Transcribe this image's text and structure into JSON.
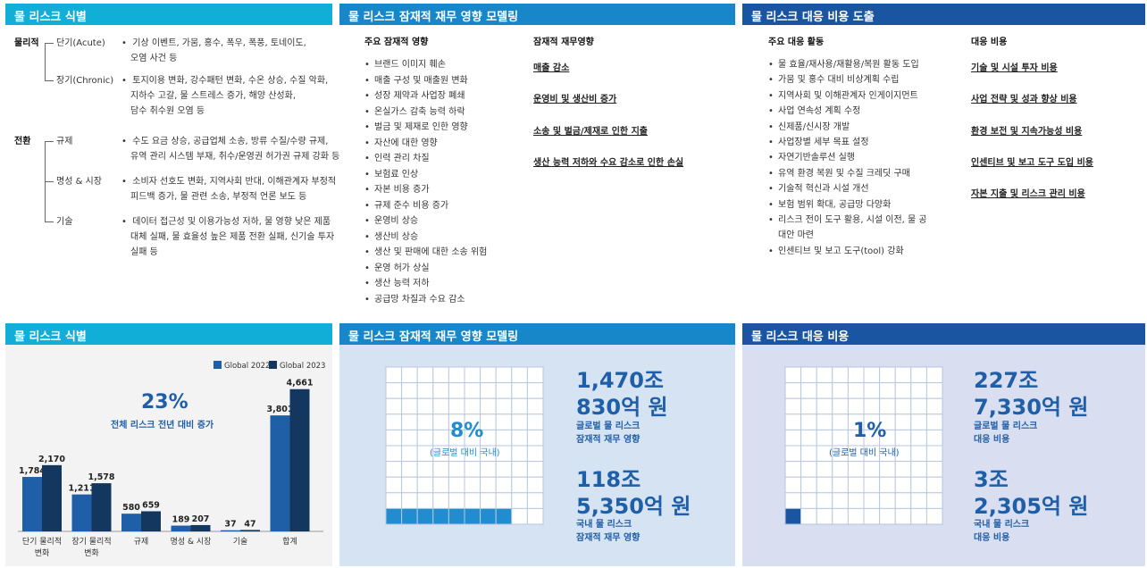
{
  "top": {
    "p1": {
      "header": "물 리스크 식별",
      "cat_physical": "물리적",
      "cat_transition": "전환",
      "items": [
        {
          "label": "단기(Acute)",
          "lines": [
            "기상 이벤트, 가뭄, 홍수, 폭우, 폭풍, 토네이도,",
            "오염 사건 등"
          ]
        },
        {
          "label": "장기(Chronic)",
          "lines": [
            "토지이용 변화, 강수패턴 변화, 수온 상승, 수질 악화,",
            "지하수 고갈, 물 스트레스 증가, 해양 산성화,",
            "담수 취수원 오염 등"
          ]
        },
        {
          "label": "규제",
          "lines": [
            "수도 요금 상승, 공급업체 소송, 방류 수질/수량 규제,",
            "유역 관리 시스템 부재, 취수/운영권 허가권 규제 강화 등"
          ]
        },
        {
          "label": "명성 & 시장",
          "lines": [
            "소비자 선호도 변화, 지역사회 반대, 이해관계자 부정적",
            "피드백 증가, 물 관련 소송, 부정적 언론 보도 등"
          ]
        },
        {
          "label": "기술",
          "lines": [
            "데이터 접근성 및 이용가능성 저하, 물 영향 낮은 제품",
            "대체 실패, 물 효율성 높은 제품 전환 실패, 신기술 투자",
            "실패 등"
          ]
        }
      ]
    },
    "p2": {
      "header": "물 리스크 잠재적 재무 영향  모델링",
      "col1_title": "주요 잠재적 영향",
      "col2_title": "잠재적 재무영향",
      "impacts": [
        "브랜드 이미지 훼손",
        "매출 구성 및 매출원 변화",
        "성장 제약과 사업장 폐쇄",
        "온실가스 감축 능력 하락",
        "벌금 및 제재로 인한 영향",
        "자산에 대한 영향",
        "인력 관리 차질",
        "보험료 인상",
        "자본 비용 증가",
        "규제 준수 비용 증가",
        "운영비 상승",
        "생산비 상승",
        "생산 및 판매에 대한 소송 위험",
        "운영 허가 상실",
        "생산 능력 저하",
        "공급망 차질과 수요 감소"
      ],
      "financial": [
        "매출 감소",
        "운영비 및 생산비 증가",
        "소송 및 벌금/제재로 인한 지출",
        "생산 능력 저하와 수요 감소로 인한 손실"
      ]
    },
    "p3": {
      "header": "물 리스크 대응 비용 도출",
      "col1_title": "주요 대응 활동",
      "col2_title": "대응 비용",
      "activities": [
        "물 효율/재사용/재활용/복원 활동 도입",
        "가뭄 및 홍수 대비 비상계획 수립",
        "지역사회 및 이해관계자 인게이지먼트",
        "사업 연속성 계획 수정",
        "신제품/신시장 개발",
        "사업장별 세부 목표 설정",
        "자연기반솔루션 실행",
        "유역 환경 복원 및 수질 크레딧 구매",
        "기술적 혁신과 시설 개선",
        "보험 범위 확대, 공급망 다양화",
        "리스크 전이 도구 활용, 시설 이전, 물 공",
        "대안 마련",
        "인센티브 및 보고 도구(tool) 강화"
      ],
      "costs": [
        "기술 및 시설 투자 비용",
        "사업 전략 및 성과 향상 비용",
        "환경 보전 및 지속가능성 비용",
        "인센티브 및 보고 도구 도입 비용",
        "자본 지출 및 리스크 관리 비용"
      ]
    }
  },
  "bottom": {
    "b1": {
      "header": "물 리스크 식별",
      "pct": "23%",
      "pct_caption": "전체 리스크 전년 대비 증가"
    },
    "b2": {
      "header": "물 리스크 잠재적 재무 영향 모델링",
      "grid_pct": "8%",
      "grid_caption": "(글로벌 대비 국내)",
      "global_l1": "1,470조",
      "global_l2": "830억 원",
      "global_caption": [
        "글로벌 물 리스크",
        "잠재적 재무 영향"
      ],
      "domestic_l1": "118조",
      "domestic_l2": "5,350억 원",
      "domestic_caption": [
        "국내 물 리스크",
        "잠재적 재무 영향"
      ]
    },
    "b3": {
      "header": "물 리스크 대응 비용",
      "grid_pct": "1%",
      "grid_caption": "(글로벌 대비 국내)",
      "global_l1": "227조",
      "global_l2": "7,330억 원",
      "global_caption": [
        "글로벌 물 리스크",
        "대응 비용"
      ],
      "domestic_l1": "3조",
      "domestic_l2": "2,305억 원",
      "domestic_caption": [
        "국내 물 리스크",
        "대응 비용"
      ]
    }
  },
  "chart_data": [
    {
      "type": "bar",
      "categories": [
        "단기 물리적\n변화",
        "장기 물리적\n변화",
        "규제",
        "명성 & 시장",
        "기술",
        "합계"
      ],
      "series": [
        {
          "name": "Global 2022",
          "values": [
            1784,
            1211,
            580,
            189,
            37,
            3801
          ]
        },
        {
          "name": "Global 2023",
          "values": [
            2170,
            1578,
            659,
            207,
            47,
            4661
          ]
        }
      ],
      "value_labels": [
        [
          "1,784",
          "1,211",
          "580",
          "189",
          "37",
          "3,801"
        ],
        [
          "2,170",
          "1,578",
          "659",
          "207",
          "47",
          "4,661"
        ]
      ],
      "ylim": [
        0,
        4800
      ],
      "colors": [
        "#1f5fa8",
        "#13375f"
      ],
      "legend": "top-right"
    },
    {
      "type": "waffle",
      "title": "8%",
      "value": 8,
      "total": 100,
      "filled_color": "#1f8dcf",
      "empty_color": "#ffffff"
    },
    {
      "type": "waffle",
      "title": "1%",
      "value": 1,
      "total": 100,
      "filled_color": "#1a55a2",
      "empty_color": "#ffffff"
    }
  ],
  "colors": {
    "header_cyan": "#11aed8",
    "header_blue": "#1787c9",
    "header_navy": "#1a55a2",
    "panel_light_blue": "#d5e3f2",
    "panel_lavender": "#d9def0",
    "panel_grey": "#f3f3f4",
    "text_blue": "#1f5fa8"
  }
}
